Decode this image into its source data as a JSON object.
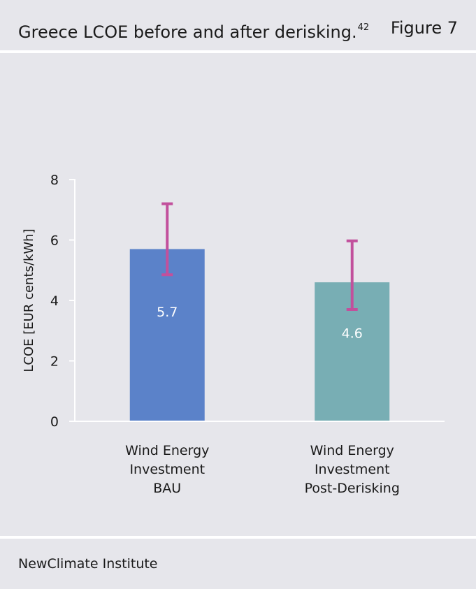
{
  "header": {
    "title": "Greece LCOE before and after derisking.",
    "title_footnote": "42",
    "figure_label": "Figure 7"
  },
  "footer": {
    "source": "NewClimate Institute"
  },
  "chart_data": {
    "type": "bar",
    "title": "",
    "xlabel": "",
    "ylabel": "LCOE [EUR cents/kWh]",
    "ylim": [
      0,
      8
    ],
    "yticks": [
      0,
      2,
      4,
      6,
      8
    ],
    "grid": false,
    "categories": [
      [
        "Wind Energy",
        "Investment",
        "BAU"
      ],
      [
        "Wind Energy",
        "Investment",
        "Post-Derisking"
      ]
    ],
    "values": [
      5.7,
      4.6
    ],
    "data_labels": [
      "5.7",
      "4.6"
    ],
    "error_bars": [
      {
        "low": 4.85,
        "high": 7.2
      },
      {
        "low": 3.7,
        "high": 5.97
      }
    ],
    "colors": {
      "bars": [
        "#5b82c9",
        "#78aeb4"
      ],
      "error_bar": "#c2509c",
      "axis": "#ffffff",
      "data_label": "#ffffff",
      "text": "#1a1a1a"
    }
  }
}
